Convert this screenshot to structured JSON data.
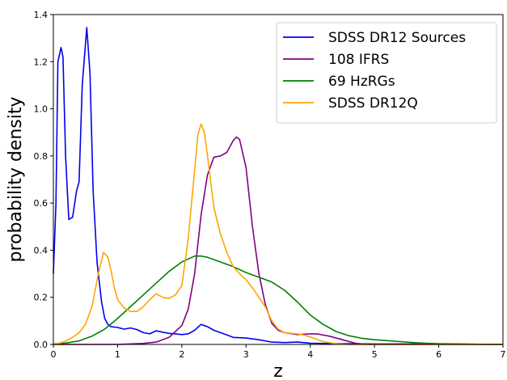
{
  "chart_data": {
    "type": "line",
    "title": "",
    "xlabel": "z",
    "ylabel": "probability density",
    "xlim": [
      0,
      7
    ],
    "ylim": [
      0,
      1.4
    ],
    "x_ticks": [
      "0",
      "1",
      "2",
      "3",
      "4",
      "5",
      "6",
      "7"
    ],
    "y_ticks": [
      "0.0",
      "0.2",
      "0.4",
      "0.6",
      "0.8",
      "1.0",
      "1.2",
      "1.4"
    ],
    "grid": false,
    "legend_position": "top-right",
    "series": [
      {
        "name": "SDSS DR12 Sources",
        "color": "#0000ee",
        "points": [
          [
            0,
            0.3
          ],
          [
            0.04,
            0.6
          ],
          [
            0.07,
            1.2
          ],
          [
            0.12,
            1.26
          ],
          [
            0.15,
            1.22
          ],
          [
            0.19,
            0.8
          ],
          [
            0.24,
            0.53
          ],
          [
            0.3,
            0.54
          ],
          [
            0.36,
            0.65
          ],
          [
            0.4,
            0.69
          ],
          [
            0.45,
            1.1
          ],
          [
            0.52,
            1.345
          ],
          [
            0.57,
            1.15
          ],
          [
            0.62,
            0.65
          ],
          [
            0.68,
            0.35
          ],
          [
            0.75,
            0.18
          ],
          [
            0.8,
            0.11
          ],
          [
            0.85,
            0.085
          ],
          [
            0.9,
            0.075
          ],
          [
            1.0,
            0.072
          ],
          [
            1.1,
            0.065
          ],
          [
            1.2,
            0.07
          ],
          [
            1.3,
            0.063
          ],
          [
            1.4,
            0.05
          ],
          [
            1.5,
            0.045
          ],
          [
            1.6,
            0.058
          ],
          [
            1.7,
            0.052
          ],
          [
            1.8,
            0.047
          ],
          [
            1.9,
            0.045
          ],
          [
            2.0,
            0.042
          ],
          [
            2.1,
            0.045
          ],
          [
            2.2,
            0.06
          ],
          [
            2.3,
            0.085
          ],
          [
            2.4,
            0.075
          ],
          [
            2.5,
            0.06
          ],
          [
            2.6,
            0.05
          ],
          [
            2.7,
            0.04
          ],
          [
            2.8,
            0.03
          ],
          [
            3.0,
            0.027
          ],
          [
            3.2,
            0.02
          ],
          [
            3.4,
            0.01
          ],
          [
            3.6,
            0.008
          ],
          [
            3.8,
            0.01
          ],
          [
            4.0,
            0.005
          ],
          [
            4.5,
            0.003
          ],
          [
            5.0,
            0.002
          ],
          [
            6.0,
            0.002
          ],
          [
            7.0,
            0
          ]
        ]
      },
      {
        "name": "108 IFRS",
        "color": "#800080",
        "points": [
          [
            0,
            0
          ],
          [
            1.0,
            0
          ],
          [
            1.2,
            0.002
          ],
          [
            1.4,
            0.004
          ],
          [
            1.6,
            0.01
          ],
          [
            1.8,
            0.03
          ],
          [
            2.0,
            0.08
          ],
          [
            2.1,
            0.15
          ],
          [
            2.2,
            0.3
          ],
          [
            2.3,
            0.55
          ],
          [
            2.4,
            0.72
          ],
          [
            2.5,
            0.795
          ],
          [
            2.6,
            0.8
          ],
          [
            2.7,
            0.815
          ],
          [
            2.8,
            0.865
          ],
          [
            2.85,
            0.88
          ],
          [
            2.9,
            0.87
          ],
          [
            3.0,
            0.75
          ],
          [
            3.1,
            0.5
          ],
          [
            3.2,
            0.3
          ],
          [
            3.3,
            0.17
          ],
          [
            3.4,
            0.09
          ],
          [
            3.5,
            0.06
          ],
          [
            3.6,
            0.05
          ],
          [
            3.8,
            0.042
          ],
          [
            4.0,
            0.045
          ],
          [
            4.1,
            0.045
          ],
          [
            4.3,
            0.035
          ],
          [
            4.5,
            0.02
          ],
          [
            4.7,
            0.005
          ],
          [
            4.9,
            0
          ],
          [
            7.0,
            0
          ]
        ]
      },
      {
        "name": "69 HzRGs",
        "color": "#008000",
        "points": [
          [
            0,
            0.002
          ],
          [
            0.2,
            0.006
          ],
          [
            0.4,
            0.015
          ],
          [
            0.6,
            0.035
          ],
          [
            0.8,
            0.065
          ],
          [
            1.0,
            0.11
          ],
          [
            1.2,
            0.16
          ],
          [
            1.4,
            0.21
          ],
          [
            1.6,
            0.26
          ],
          [
            1.8,
            0.31
          ],
          [
            2.0,
            0.35
          ],
          [
            2.2,
            0.375
          ],
          [
            2.3,
            0.375
          ],
          [
            2.4,
            0.37
          ],
          [
            2.6,
            0.35
          ],
          [
            2.8,
            0.33
          ],
          [
            3.0,
            0.305
          ],
          [
            3.2,
            0.285
          ],
          [
            3.4,
            0.265
          ],
          [
            3.6,
            0.23
          ],
          [
            3.8,
            0.18
          ],
          [
            4.0,
            0.125
          ],
          [
            4.2,
            0.085
          ],
          [
            4.4,
            0.055
          ],
          [
            4.6,
            0.037
          ],
          [
            4.8,
            0.026
          ],
          [
            5.0,
            0.02
          ],
          [
            5.2,
            0.016
          ],
          [
            5.4,
            0.012
          ],
          [
            5.6,
            0.008
          ],
          [
            5.8,
            0.005
          ],
          [
            6.0,
            0.003
          ],
          [
            6.5,
            0.001
          ],
          [
            7.0,
            0
          ]
        ]
      },
      {
        "name": "SDSS DR12Q",
        "color": "#ffa500",
        "points": [
          [
            0,
            0.002
          ],
          [
            0.1,
            0.006
          ],
          [
            0.2,
            0.015
          ],
          [
            0.3,
            0.03
          ],
          [
            0.4,
            0.05
          ],
          [
            0.5,
            0.085
          ],
          [
            0.6,
            0.16
          ],
          [
            0.7,
            0.3
          ],
          [
            0.78,
            0.39
          ],
          [
            0.85,
            0.37
          ],
          [
            0.9,
            0.31
          ],
          [
            0.95,
            0.24
          ],
          [
            1.0,
            0.19
          ],
          [
            1.1,
            0.155
          ],
          [
            1.2,
            0.14
          ],
          [
            1.3,
            0.14
          ],
          [
            1.4,
            0.16
          ],
          [
            1.5,
            0.19
          ],
          [
            1.6,
            0.215
          ],
          [
            1.7,
            0.2
          ],
          [
            1.8,
            0.195
          ],
          [
            1.9,
            0.21
          ],
          [
            2.0,
            0.25
          ],
          [
            2.1,
            0.45
          ],
          [
            2.2,
            0.74
          ],
          [
            2.25,
            0.89
          ],
          [
            2.3,
            0.935
          ],
          [
            2.35,
            0.9
          ],
          [
            2.4,
            0.8
          ],
          [
            2.5,
            0.58
          ],
          [
            2.6,
            0.47
          ],
          [
            2.7,
            0.39
          ],
          [
            2.8,
            0.33
          ],
          [
            2.9,
            0.3
          ],
          [
            3.0,
            0.275
          ],
          [
            3.1,
            0.24
          ],
          [
            3.2,
            0.2
          ],
          [
            3.3,
            0.16
          ],
          [
            3.4,
            0.1
          ],
          [
            3.5,
            0.065
          ],
          [
            3.6,
            0.05
          ],
          [
            3.7,
            0.047
          ],
          [
            3.8,
            0.045
          ],
          [
            3.9,
            0.04
          ],
          [
            4.0,
            0.032
          ],
          [
            4.2,
            0.012
          ],
          [
            4.4,
            0.003
          ],
          [
            4.6,
            0
          ],
          [
            7.0,
            0
          ]
        ]
      }
    ]
  }
}
